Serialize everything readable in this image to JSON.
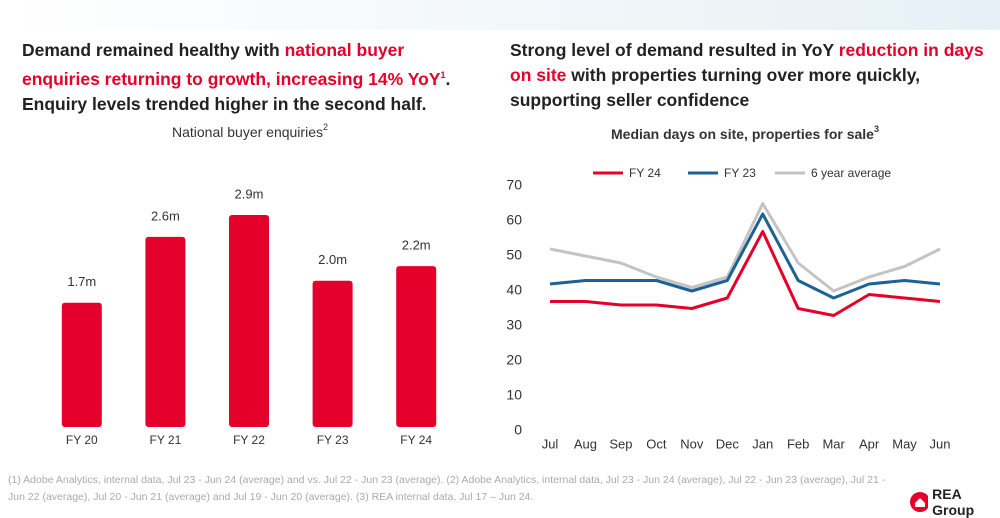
{
  "left_heading": {
    "parts": [
      "Demand remained healthy with ",
      "national buyer enquiries returning to growth, increasing 14% YoY",
      "1",
      ". Enquiry levels trended higher in the second half."
    ]
  },
  "right_heading": {
    "parts": [
      "Strong level of demand resulted in YoY ",
      "reduction in days on site",
      " with properties turning over more quickly, supporting seller confidence"
    ]
  },
  "chart_data": [
    {
      "type": "bar",
      "title": "National buyer enquiries",
      "title_superscript": "2",
      "categories": [
        "FY 20",
        "FY 21",
        "FY 22",
        "FY 23",
        "FY 24"
      ],
      "values": [
        1.7,
        2.6,
        2.9,
        2.0,
        2.2
      ],
      "value_labels": [
        "1.7m",
        "2.6m",
        "2.9m",
        "2.0m",
        "2.2m"
      ],
      "color": "#e4002b"
    },
    {
      "type": "line",
      "title": "Median days on site, properties for sale",
      "title_superscript": "3",
      "categories": [
        "Jul",
        "Aug",
        "Sep",
        "Oct",
        "Nov",
        "Dec",
        "Jan",
        "Feb",
        "Mar",
        "Apr",
        "May",
        "Jun"
      ],
      "series": [
        {
          "name": "FY 24",
          "color": "#e4002b",
          "values": [
            37,
            37,
            36,
            36,
            35,
            38,
            57,
            35,
            33,
            39,
            38,
            37
          ]
        },
        {
          "name": "FY 23",
          "color": "#1b6394",
          "values": [
            42,
            43,
            43,
            43,
            40,
            43,
            62,
            43,
            38,
            42,
            43,
            42
          ]
        },
        {
          "name": "6 year average",
          "color": "#c4c4c4",
          "values": [
            52,
            50,
            48,
            44,
            41,
            44,
            65,
            48,
            40,
            44,
            47,
            52
          ]
        }
      ],
      "ylim": [
        0,
        70
      ],
      "yticks": [
        0,
        10,
        20,
        30,
        40,
        50,
        60,
        70
      ],
      "grid": false,
      "legend": "top"
    }
  ],
  "footnote": "(1) Adobe Analytics, internal data, Jul 23 - Jun 24 (average) and vs. Jul 22 - Jun 23 (average). (2) Adobe Analytics, internal data, Jul 23 - Jun 24 (average), Jul 22 - Jun 23 (average), Jul 21 - Jun 22 (average), Jul 20 - Jun 21 (average) and Jul 19 - Jun 20 (average). (3) REA internal data, Jul 17 – Jun 24.",
  "logo": "REA Group"
}
